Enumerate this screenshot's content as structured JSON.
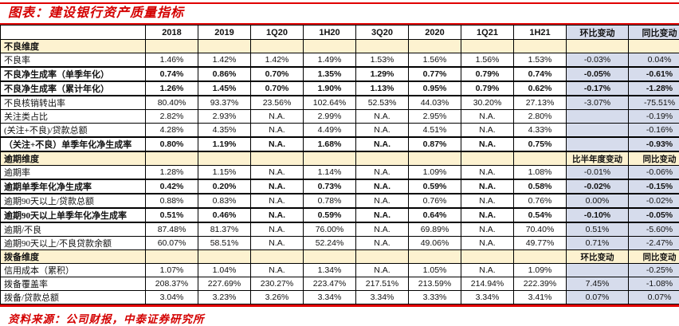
{
  "title": "图表：建设银行资产质量指标",
  "source": "资料来源：公司财报，中泰证券研究所",
  "colors": {
    "accent_red": "#d40000",
    "rule_red": "#e00000",
    "section_bg": "#fdf2d0",
    "change_bg": "#d6dcec",
    "border": "#000000"
  },
  "table": {
    "columns": [
      "",
      "2018",
      "2019",
      "1Q20",
      "1H20",
      "3Q20",
      "2020",
      "1Q21",
      "1H21",
      "环比变动",
      "同比变动"
    ],
    "rows": [
      {
        "type": "section",
        "bold": true,
        "label": "不良维度",
        "values": [
          "",
          "",
          "",
          "",
          "",
          "",
          "",
          "",
          "",
          ""
        ]
      },
      {
        "type": "data",
        "bold": false,
        "label": "不良率",
        "values": [
          "1.46%",
          "1.42%",
          "1.42%",
          "1.49%",
          "1.53%",
          "1.56%",
          "1.56%",
          "1.53%",
          "-0.03%",
          "0.04%"
        ]
      },
      {
        "type": "data",
        "bold": true,
        "label": "不良净生成率（单季年化）",
        "values": [
          "0.74%",
          "0.86%",
          "0.70%",
          "1.35%",
          "1.29%",
          "0.77%",
          "0.79%",
          "0.74%",
          "-0.05%",
          "-0.61%"
        ]
      },
      {
        "type": "data",
        "bold": true,
        "label": "不良净生成率（累计年化）",
        "values": [
          "1.26%",
          "1.45%",
          "0.70%",
          "1.90%",
          "1.13%",
          "0.95%",
          "0.79%",
          "0.62%",
          "-0.17%",
          "-1.28%"
        ]
      },
      {
        "type": "data",
        "bold": false,
        "label": "不良核销转出率",
        "values": [
          "80.40%",
          "93.37%",
          "23.56%",
          "102.64%",
          "52.53%",
          "44.03%",
          "30.20%",
          "27.13%",
          "-3.07%",
          "-75.51%"
        ]
      },
      {
        "type": "data",
        "bold": false,
        "label": "关注类占比",
        "values": [
          "2.82%",
          "2.93%",
          "N.A.",
          "2.99%",
          "N.A.",
          "2.95%",
          "N.A.",
          "2.80%",
          "",
          "-0.19%"
        ]
      },
      {
        "type": "data",
        "bold": false,
        "label": "(关注+不良)/贷款总额",
        "values": [
          "4.28%",
          "4.35%",
          "N.A.",
          "4.49%",
          "N.A.",
          "4.51%",
          "N.A.",
          "4.33%",
          "",
          "-0.16%"
        ]
      },
      {
        "type": "data",
        "bold": true,
        "label": "（关注+不良）单季年化净生成率",
        "values": [
          "0.80%",
          "1.19%",
          "N.A.",
          "1.68%",
          "N.A.",
          "0.87%",
          "N.A.",
          "0.75%",
          "",
          "-0.93%"
        ]
      },
      {
        "type": "section",
        "bold": true,
        "label": "逾期维度",
        "values": [
          "",
          "",
          "",
          "",
          "",
          "",
          "",
          "",
          "比半年度变动",
          "同比变动"
        ]
      },
      {
        "type": "data",
        "bold": false,
        "label": "逾期率",
        "values": [
          "1.28%",
          "1.15%",
          "N.A.",
          "1.14%",
          "N.A.",
          "1.09%",
          "N.A.",
          "1.08%",
          "-0.01%",
          "-0.06%"
        ]
      },
      {
        "type": "data",
        "bold": true,
        "label": "逾期单季年化净生成率",
        "values": [
          "0.42%",
          "0.20%",
          "N.A.",
          "0.73%",
          "N.A.",
          "0.59%",
          "N.A.",
          "0.58%",
          "-0.02%",
          "-0.15%"
        ]
      },
      {
        "type": "data",
        "bold": false,
        "label": "逾期90天以上/贷款总额",
        "values": [
          "0.88%",
          "0.83%",
          "N.A.",
          "0.78%",
          "N.A.",
          "0.76%",
          "N.A.",
          "0.76%",
          "0.00%",
          "-0.02%"
        ]
      },
      {
        "type": "data",
        "bold": true,
        "label": "逾期90天以上单季年化净生成率",
        "values": [
          "0.51%",
          "0.46%",
          "N.A.",
          "0.59%",
          "N.A.",
          "0.64%",
          "N.A.",
          "0.54%",
          "-0.10%",
          "-0.05%"
        ]
      },
      {
        "type": "data",
        "bold": false,
        "label": "逾期/不良",
        "values": [
          "87.48%",
          "81.37%",
          "N.A.",
          "76.00%",
          "N.A.",
          "69.89%",
          "N.A.",
          "70.40%",
          "0.51%",
          "-5.60%"
        ]
      },
      {
        "type": "data",
        "bold": false,
        "label": "逾期90天以上/不良贷款余额",
        "values": [
          "60.07%",
          "58.51%",
          "N.A.",
          "52.24%",
          "N.A.",
          "49.06%",
          "N.A.",
          "49.77%",
          "0.71%",
          "-2.47%"
        ]
      },
      {
        "type": "section",
        "bold": true,
        "label": "拨备维度",
        "values": [
          "",
          "",
          "",
          "",
          "",
          "",
          "",
          "",
          "环比变动",
          "同比变动"
        ]
      },
      {
        "type": "data",
        "bold": false,
        "label": "信用成本（累积）",
        "values": [
          "1.07%",
          "1.04%",
          "N.A.",
          "1.34%",
          "N.A.",
          "1.05%",
          "N.A.",
          "1.09%",
          "",
          "-0.25%"
        ]
      },
      {
        "type": "data",
        "bold": false,
        "label": "拨备覆盖率",
        "values": [
          "208.37%",
          "227.69%",
          "230.27%",
          "223.47%",
          "217.51%",
          "213.59%",
          "214.94%",
          "222.39%",
          "7.45%",
          "-1.08%"
        ]
      },
      {
        "type": "data",
        "bold": false,
        "label": "拨备/贷款总额",
        "values": [
          "3.04%",
          "3.23%",
          "3.26%",
          "3.34%",
          "3.34%",
          "3.33%",
          "3.34%",
          "3.41%",
          "0.07%",
          "0.07%"
        ]
      }
    ]
  }
}
